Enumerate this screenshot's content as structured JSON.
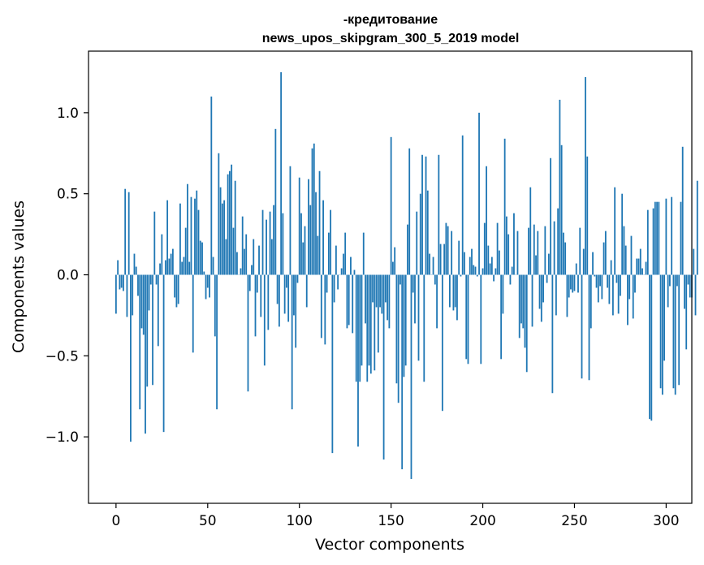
{
  "chart_data": {
    "type": "bar",
    "title_line1": "-кредитование",
    "title_line2": "news_upos_skipgram_300_5_2019 model",
    "xlabel": "Vector components",
    "ylabel": "Components values",
    "xlim": [
      -15,
      314
    ],
    "ylim": [
      -1.41,
      1.38
    ],
    "x_ticks": [
      0,
      50,
      100,
      150,
      200,
      250,
      300
    ],
    "x_tick_labels": [
      "0",
      "50",
      "100",
      "150",
      "200",
      "250",
      "300"
    ],
    "y_ticks": [
      -1.0,
      -0.5,
      0.0,
      0.5,
      1.0
    ],
    "y_tick_labels": [
      "−1.0",
      "−0.5",
      "0.0",
      "0.5",
      "1.0"
    ],
    "bar_color": "#1f77b4",
    "values": [
      -0.24,
      0.09,
      -0.09,
      -0.08,
      -0.1,
      0.53,
      -0.26,
      0.51,
      -1.03,
      -0.25,
      0.13,
      0.05,
      -0.13,
      -0.83,
      -0.33,
      -0.37,
      -0.98,
      -0.69,
      -0.22,
      -0.06,
      -0.68,
      0.39,
      -0.06,
      -0.44,
      0.07,
      0.25,
      -0.97,
      0.09,
      0.46,
      0.1,
      0.13,
      0.16,
      -0.14,
      -0.2,
      -0.18,
      0.44,
      0.08,
      0.11,
      0.29,
      0.56,
      0.08,
      0.48,
      -0.48,
      0.47,
      0.52,
      0.4,
      0.21,
      0.2,
      0.02,
      -0.15,
      -0.08,
      -0.14,
      1.1,
      0.11,
      -0.38,
      -0.83,
      0.75,
      0.54,
      0.44,
      0.46,
      0.22,
      0.62,
      0.64,
      0.68,
      0.29,
      0.58,
      0.14,
      0.0,
      0.04,
      0.36,
      0.16,
      0.25,
      -0.72,
      -0.1,
      0.06,
      0.22,
      -0.38,
      -0.11,
      0.18,
      -0.26,
      0.4,
      -0.56,
      0.34,
      -0.34,
      0.39,
      0.22,
      0.43,
      0.9,
      -0.18,
      -0.32,
      1.25,
      0.38,
      -0.24,
      -0.08,
      -0.29,
      0.67,
      -0.83,
      -0.25,
      -0.45,
      -0.05,
      0.6,
      0.38,
      0.2,
      0.3,
      -0.2,
      0.59,
      0.43,
      0.78,
      0.81,
      0.51,
      0.24,
      0.64,
      -0.39,
      0.46,
      -0.43,
      -0.11,
      0.26,
      0.4,
      -1.1,
      -0.17,
      0.18,
      -0.09,
      0.0,
      0.04,
      0.13,
      0.26,
      -0.33,
      -0.31,
      0.11,
      -0.36,
      0.03,
      -0.66,
      -1.06,
      -0.66,
      -0.56,
      0.26,
      -0.3,
      -0.66,
      -0.56,
      -0.61,
      -0.17,
      -0.59,
      -0.2,
      -0.48,
      -0.2,
      -0.24,
      -1.14,
      -0.17,
      -0.28,
      -0.33,
      0.85,
      0.08,
      0.17,
      -0.67,
      -0.79,
      -0.06,
      -1.2,
      -0.63,
      -0.56,
      0.31,
      0.78,
      -1.26,
      -0.11,
      -0.3,
      0.39,
      -0.53,
      0.5,
      0.74,
      -0.66,
      0.73,
      0.52,
      0.13,
      0.0,
      0.11,
      -0.06,
      -0.33,
      0.74,
      0.19,
      -0.84,
      0.19,
      0.32,
      0.3,
      -0.2,
      0.27,
      -0.22,
      -0.2,
      -0.28,
      0.21,
      -0.01,
      0.86,
      0.14,
      -0.52,
      -0.55,
      0.11,
      0.16,
      0.06,
      0.05,
      -0.01,
      1.0,
      -0.55,
      0.04,
      0.32,
      0.67,
      0.18,
      0.07,
      0.11,
      -0.04,
      0.04,
      0.32,
      0.15,
      -0.52,
      -0.24,
      0.84,
      0.36,
      0.25,
      -0.06,
      0.05,
      0.38,
      0.0,
      0.27,
      -0.39,
      -0.3,
      -0.33,
      -0.45,
      -0.6,
      0.29,
      0.54,
      -0.32,
      0.31,
      0.12,
      0.27,
      -0.21,
      -0.29,
      -0.17,
      0.3,
      -0.05,
      0.13,
      0.72,
      -0.73,
      0.33,
      -0.25,
      0.41,
      1.08,
      0.8,
      0.26,
      0.2,
      -0.26,
      -0.14,
      -0.09,
      -0.11,
      -0.1,
      0.07,
      -0.11,
      0.29,
      -0.64,
      0.16,
      1.22,
      0.73,
      -0.65,
      -0.33,
      0.14,
      -0.01,
      -0.08,
      -0.17,
      -0.07,
      -0.15,
      0.2,
      0.27,
      -0.08,
      -0.18,
      0.09,
      -0.25,
      0.54,
      -0.05,
      -0.24,
      -0.13,
      0.5,
      0.3,
      0.18,
      -0.31,
      -0.15,
      0.24,
      -0.27,
      -0.11,
      0.1,
      0.1,
      0.16,
      0.04,
      0.0,
      0.08,
      0.4,
      -0.89,
      -0.9,
      0.41,
      0.45,
      0.45,
      0.45,
      -0.7,
      -0.74,
      -0.53,
      0.47,
      -0.2,
      -0.07,
      0.48,
      -0.7,
      -0.74,
      -0.07,
      -0.68,
      0.45,
      0.79,
      -0.21,
      -0.46,
      -0.06,
      -0.14,
      -0.14,
      0.16,
      -0.25,
      0.58
    ]
  }
}
